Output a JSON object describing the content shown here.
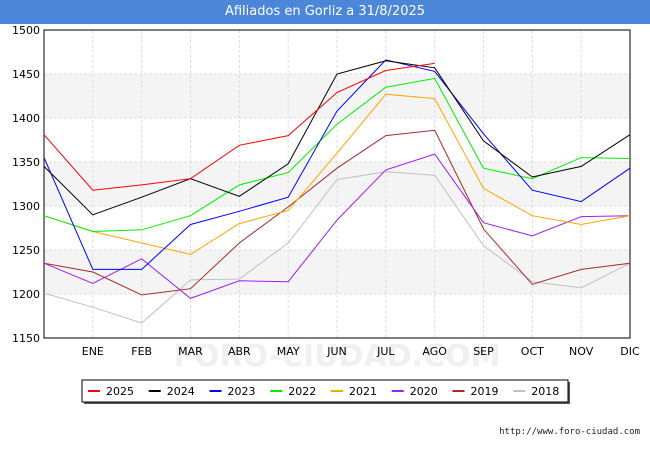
{
  "header": {
    "title": "Afiliados en Gorliz a 31/8/2025"
  },
  "footer": {
    "url": "http://www.foro-ciudad.com"
  },
  "watermark": "FORO-CIUDAD.COM",
  "chart_data": {
    "type": "line",
    "title": "Afiliados en Gorliz a 31/8/2025",
    "xlabel": "",
    "ylabel": "",
    "ylim": [
      1150,
      1500
    ],
    "yticks": [
      1150,
      1200,
      1250,
      1300,
      1350,
      1400,
      1450,
      1500
    ],
    "categories": [
      "",
      "ENE",
      "FEB",
      "MAR",
      "ABR",
      "MAY",
      "JUN",
      "JUL",
      "AGO",
      "SEP",
      "OCT",
      "NOV",
      "DIC"
    ],
    "legend_position": "bottom",
    "grid": true,
    "series": [
      {
        "name": "2025",
        "color": "#ff0000",
        "values": [
          1381,
          1318,
          1324,
          1331,
          1369,
          1380,
          1429,
          1454,
          1462,
          null,
          null,
          null,
          null
        ]
      },
      {
        "name": "2024",
        "color": "#000000",
        "values": [
          1345,
          1290,
          1310,
          1331,
          1311,
          1348,
          1450,
          1465,
          1457,
          1374,
          1333,
          1345,
          1381
        ]
      },
      {
        "name": "2023",
        "color": "#0000ff",
        "values": [
          1355,
          1228,
          1228,
          1279,
          1294,
          1310,
          1408,
          1466,
          1453,
          1382,
          1318,
          1305,
          1343
        ]
      },
      {
        "name": "2022",
        "color": "#00ee00",
        "values": [
          1289,
          1271,
          1273,
          1289,
          1324,
          1338,
          1393,
          1435,
          1445,
          1343,
          1331,
          1355,
          1354
        ]
      },
      {
        "name": "2021",
        "color": "#ffa500",
        "values": [
          1289,
          1271,
          1258,
          1245,
          1280,
          1295,
          1360,
          1427,
          1422,
          1320,
          1289,
          1279,
          1289
        ]
      },
      {
        "name": "2020",
        "color": "#a020f0",
        "values": [
          1235,
          1212,
          1240,
          1195,
          1215,
          1214,
          1284,
          1341,
          1359,
          1281,
          1266,
          1288,
          1289
        ]
      },
      {
        "name": "2019",
        "color": "#a52a2a",
        "values": [
          1235,
          1225,
          1199,
          1206,
          1258,
          1299,
          1343,
          1380,
          1386,
          1274,
          1211,
          1228,
          1235
        ]
      },
      {
        "name": "2018",
        "color": "#c0c0c0",
        "values": [
          1201,
          1185,
          1167,
          1216,
          1217,
          1258,
          1330,
          1339,
          1335,
          1255,
          1214,
          1207,
          1235
        ]
      }
    ]
  }
}
